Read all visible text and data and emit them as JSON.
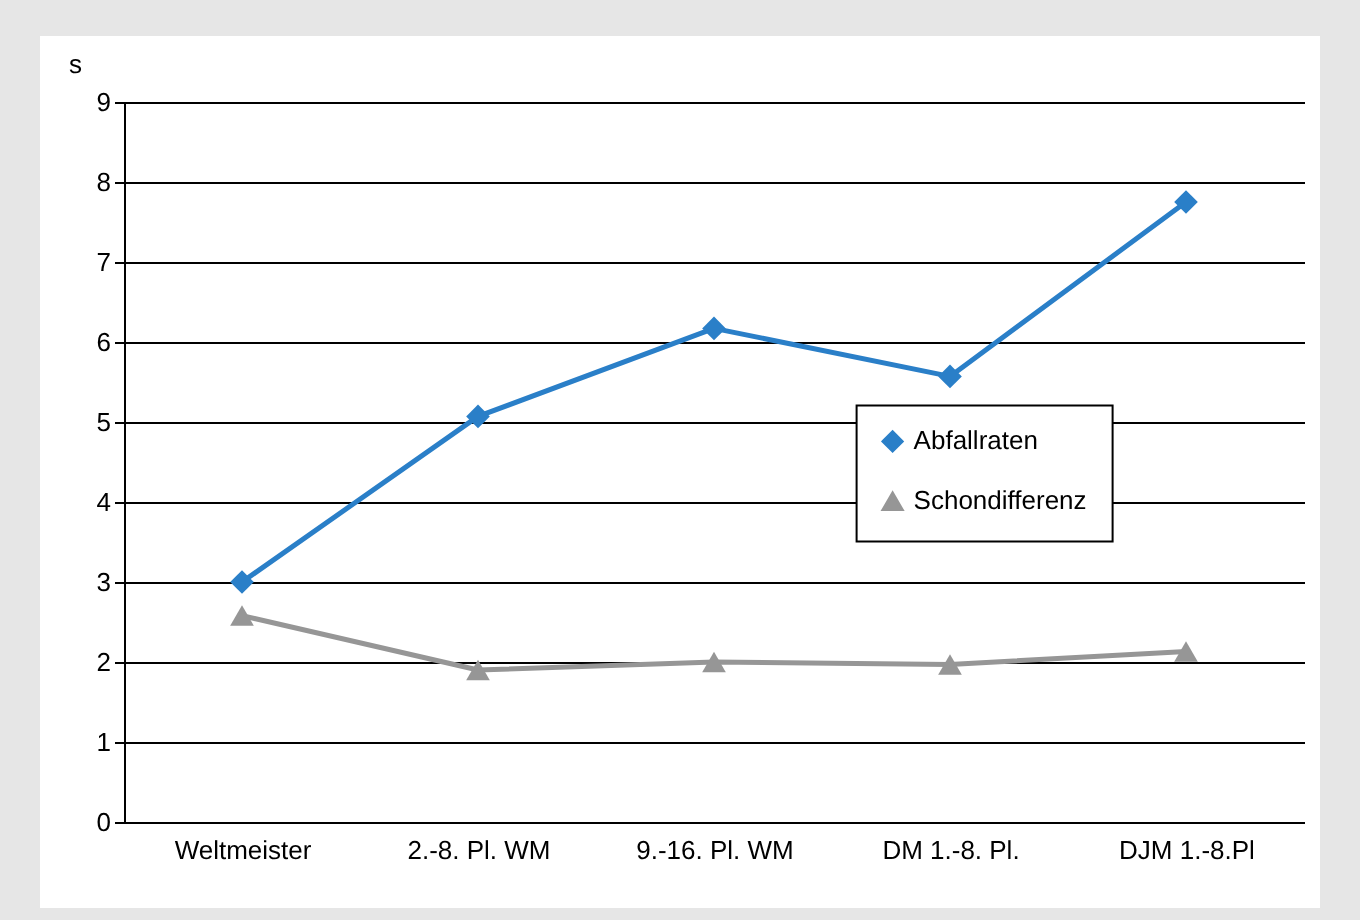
{
  "chart_data": {
    "type": "line",
    "ylabel": "s",
    "categories": [
      "Weltmeister",
      "2.-8. Pl. WM",
      "9.-16. Pl. WM",
      "DM 1.-8. Pl.",
      "DJM 1.-8.Pl"
    ],
    "series": [
      {
        "name": "Abfallraten",
        "color": "#2a7fc8",
        "marker": "diamond",
        "values": [
          3.0,
          5.07,
          6.17,
          5.57,
          7.75
        ]
      },
      {
        "name": "Schondifferenz",
        "color": "#969696",
        "marker": "triangle",
        "values": [
          2.58,
          1.9,
          2.0,
          1.97,
          2.13
        ]
      }
    ],
    "ylim": [
      0,
      9
    ],
    "yticks": [
      0,
      1,
      2,
      3,
      4,
      5,
      6,
      7,
      8,
      9
    ],
    "grid": "y",
    "legend": "right"
  }
}
